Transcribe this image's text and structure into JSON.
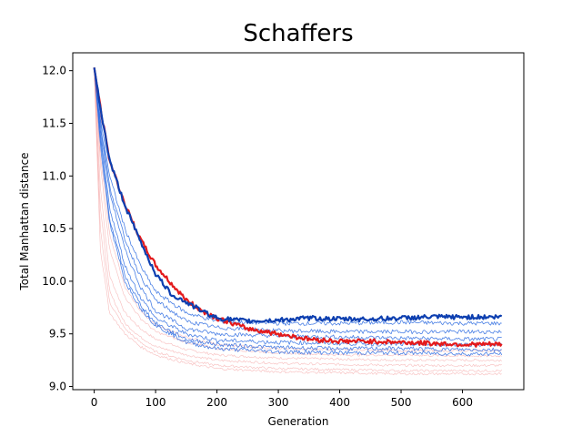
{
  "chart_data": {
    "type": "line",
    "title": "Schaffers",
    "xlabel": "Generation",
    "ylabel": "Total Manhattan distance",
    "xlim": [
      -35,
      700
    ],
    "ylim": [
      8.97,
      12.17
    ],
    "xticks": [
      0,
      100,
      200,
      300,
      400,
      500,
      600
    ],
    "yticks": [
      9.0,
      9.5,
      10.0,
      10.5,
      11.0,
      11.5,
      12.0
    ],
    "ytick_labels": [
      "9.0",
      "9.5",
      "10.0",
      "10.5",
      "11.0",
      "11.5",
      "12.0"
    ],
    "grid": false,
    "legend": "none",
    "colors": {
      "bold_blue": "#0d3fb0",
      "bold_red": "#e31a1c",
      "thin_blue": "#2a6ae0",
      "thin_red": "#f4a0a0"
    },
    "series": [
      {
        "style": "bold-blue",
        "x": [
          0,
          10,
          25,
          50,
          75,
          100,
          125,
          150,
          175,
          200,
          250,
          300,
          350,
          400,
          450,
          500,
          550,
          600,
          650,
          665
        ],
        "values": [
          12.03,
          11.65,
          11.15,
          10.72,
          10.38,
          10.07,
          9.88,
          9.8,
          9.72,
          9.65,
          9.62,
          9.63,
          9.65,
          9.64,
          9.64,
          9.65,
          9.66,
          9.66,
          9.66,
          9.66
        ]
      },
      {
        "style": "bold-red",
        "x": [
          0,
          10,
          25,
          50,
          75,
          100,
          125,
          150,
          175,
          200,
          250,
          300,
          350,
          400,
          450,
          500,
          550,
          600,
          650,
          665
        ],
        "values": [
          12.03,
          11.65,
          11.15,
          10.73,
          10.4,
          10.15,
          9.98,
          9.82,
          9.72,
          9.65,
          9.55,
          9.5,
          9.45,
          9.43,
          9.43,
          9.42,
          9.41,
          9.4,
          9.4,
          9.4
        ]
      },
      {
        "style": "thin-blue",
        "x": [
          0,
          10,
          25,
          50,
          75,
          100,
          150,
          200,
          300,
          400,
          500,
          600,
          665
        ],
        "values": [
          12.02,
          11.55,
          11.0,
          10.5,
          10.15,
          9.9,
          9.7,
          9.62,
          9.6,
          9.6,
          9.61,
          9.6,
          9.6
        ]
      },
      {
        "style": "thin-blue",
        "x": [
          0,
          10,
          25,
          50,
          75,
          100,
          150,
          200,
          300,
          400,
          500,
          600,
          665
        ],
        "values": [
          12.02,
          11.45,
          10.85,
          10.3,
          9.95,
          9.72,
          9.55,
          9.5,
          9.48,
          9.47,
          9.46,
          9.45,
          9.45
        ]
      },
      {
        "style": "thin-blue",
        "x": [
          0,
          10,
          25,
          50,
          75,
          100,
          150,
          200,
          300,
          400,
          500,
          600,
          665
        ],
        "values": [
          12.02,
          11.4,
          10.7,
          10.15,
          9.85,
          9.65,
          9.5,
          9.44,
          9.42,
          9.41,
          9.4,
          9.4,
          9.4
        ]
      },
      {
        "style": "thin-blue",
        "x": [
          0,
          10,
          25,
          50,
          75,
          100,
          150,
          200,
          300,
          400,
          500,
          600,
          665
        ],
        "values": [
          12.02,
          11.35,
          10.6,
          10.05,
          9.78,
          9.6,
          9.45,
          9.4,
          9.37,
          9.36,
          9.36,
          9.35,
          9.35
        ]
      },
      {
        "style": "thin-blue",
        "x": [
          0,
          10,
          25,
          50,
          75,
          100,
          150,
          200,
          300,
          400,
          500,
          600,
          665
        ],
        "values": [
          12.02,
          11.5,
          10.9,
          10.4,
          10.05,
          9.82,
          9.62,
          9.56,
          9.53,
          9.52,
          9.52,
          9.52,
          9.52
        ]
      },
      {
        "style": "thin-blue",
        "x": [
          0,
          10,
          25,
          50,
          75,
          100,
          150,
          200,
          300,
          400,
          500,
          600,
          665
        ],
        "values": [
          12.02,
          11.3,
          10.55,
          10.0,
          9.75,
          9.58,
          9.42,
          9.36,
          9.33,
          9.32,
          9.32,
          9.31,
          9.31
        ]
      },
      {
        "style": "thin-red",
        "x": [
          0,
          10,
          25,
          50,
          75,
          100,
          150,
          200,
          300,
          400,
          500,
          600,
          665
        ],
        "values": [
          12.0,
          10.9,
          10.05,
          9.7,
          9.55,
          9.45,
          9.35,
          9.3,
          9.27,
          9.26,
          9.25,
          9.25,
          9.25
        ]
      },
      {
        "style": "thin-red",
        "x": [
          0,
          10,
          25,
          50,
          75,
          100,
          150,
          200,
          300,
          400,
          500,
          600,
          665
        ],
        "values": [
          12.0,
          10.7,
          9.9,
          9.6,
          9.47,
          9.38,
          9.3,
          9.25,
          9.22,
          9.21,
          9.2,
          9.2,
          9.2
        ]
      },
      {
        "style": "thin-red",
        "x": [
          0,
          10,
          25,
          50,
          75,
          100,
          150,
          200,
          300,
          400,
          500,
          600,
          665
        ],
        "values": [
          12.0,
          10.5,
          9.8,
          9.55,
          9.42,
          9.33,
          9.25,
          9.2,
          9.17,
          9.16,
          9.15,
          9.15,
          9.15
        ]
      },
      {
        "style": "thin-red",
        "x": [
          0,
          10,
          25,
          50,
          75,
          100,
          150,
          200,
          300,
          400,
          500,
          600,
          665
        ],
        "values": [
          12.0,
          11.1,
          10.3,
          9.85,
          9.65,
          9.52,
          9.42,
          9.36,
          9.32,
          9.3,
          9.3,
          9.29,
          9.29
        ]
      },
      {
        "style": "thin-red",
        "x": [
          0,
          10,
          25,
          50,
          75,
          100,
          150,
          200,
          300,
          400,
          500,
          600,
          665
        ],
        "values": [
          12.0,
          10.3,
          9.7,
          9.5,
          9.38,
          9.3,
          9.22,
          9.17,
          9.14,
          9.13,
          9.12,
          9.12,
          9.12
        ]
      },
      {
        "style": "thin-red",
        "x": [
          0,
          10,
          25,
          50,
          75,
          100,
          150,
          200,
          300,
          400,
          500,
          600,
          665
        ],
        "values": [
          12.0,
          11.2,
          10.45,
          9.95,
          9.72,
          9.58,
          9.47,
          9.4,
          9.36,
          9.35,
          9.34,
          9.34,
          9.34
        ]
      }
    ]
  }
}
